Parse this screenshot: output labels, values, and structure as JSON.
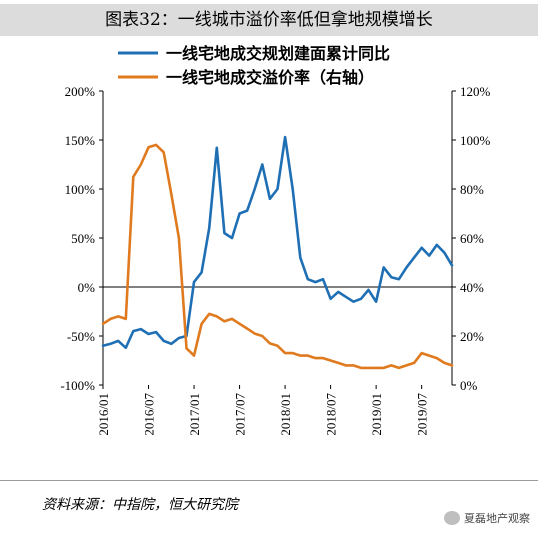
{
  "title": "图表32：一线城市溢价率低但拿地规模增长",
  "source": "资料来源：中指院，恒大研究院",
  "watermark": "夏磊地产观察",
  "chart_data": {
    "type": "line",
    "x_ticks": [
      "2016/01",
      "2016/07",
      "2017/01",
      "2017/07",
      "2018/01",
      "2018/07",
      "2019/01",
      "2019/07"
    ],
    "y_left": {
      "ticks": [
        "200%",
        "150%",
        "100%",
        "50%",
        "0%",
        "-50%",
        "-100%"
      ],
      "ylim": [
        -100,
        200
      ]
    },
    "y_right": {
      "ticks": [
        "120%",
        "100%",
        "80%",
        "60%",
        "40%",
        "20%",
        "0%"
      ],
      "ylim": [
        0,
        120
      ]
    },
    "series": [
      {
        "name": "一线宅地成交规划建面累计同比",
        "axis": "left",
        "color": "#1f6fb5",
        "values": [
          [
            0,
            -60
          ],
          [
            1,
            -58
          ],
          [
            2,
            -55
          ],
          [
            3,
            -62
          ],
          [
            4,
            -45
          ],
          [
            5,
            -43
          ],
          [
            6,
            -48
          ],
          [
            7,
            -46
          ],
          [
            8,
            -55
          ],
          [
            9,
            -58
          ],
          [
            10,
            -52
          ],
          [
            11,
            -50
          ],
          [
            12,
            5
          ],
          [
            13,
            15
          ],
          [
            14,
            60
          ],
          [
            15,
            142
          ],
          [
            16,
            55
          ],
          [
            17,
            50
          ],
          [
            18,
            75
          ],
          [
            19,
            78
          ],
          [
            20,
            100
          ],
          [
            21,
            125
          ],
          [
            22,
            90
          ],
          [
            23,
            100
          ],
          [
            24,
            153
          ],
          [
            25,
            100
          ],
          [
            26,
            30
          ],
          [
            27,
            8
          ],
          [
            28,
            5
          ],
          [
            29,
            8
          ],
          [
            30,
            -12
          ],
          [
            31,
            -5
          ],
          [
            32,
            -10
          ],
          [
            33,
            -15
          ],
          [
            34,
            -12
          ],
          [
            35,
            -3
          ],
          [
            36,
            -15
          ],
          [
            37,
            20
          ],
          [
            38,
            10
          ],
          [
            39,
            8
          ],
          [
            40,
            20
          ],
          [
            41,
            30
          ],
          [
            42,
            40
          ],
          [
            43,
            32
          ],
          [
            44,
            43
          ],
          [
            45,
            35
          ],
          [
            46,
            22
          ]
        ]
      },
      {
        "name": "一线宅地成交溢价率（右轴）",
        "axis": "right",
        "color": "#e07a1f",
        "values": [
          [
            0,
            25
          ],
          [
            1,
            27
          ],
          [
            2,
            28
          ],
          [
            3,
            27
          ],
          [
            4,
            85
          ],
          [
            5,
            90
          ],
          [
            6,
            97
          ],
          [
            7,
            98
          ],
          [
            8,
            95
          ],
          [
            9,
            78
          ],
          [
            10,
            60
          ],
          [
            11,
            15
          ],
          [
            12,
            12
          ],
          [
            13,
            25
          ],
          [
            14,
            29
          ],
          [
            15,
            28
          ],
          [
            16,
            26
          ],
          [
            17,
            27
          ],
          [
            18,
            25
          ],
          [
            19,
            23
          ],
          [
            20,
            21
          ],
          [
            21,
            20
          ],
          [
            22,
            17
          ],
          [
            23,
            16
          ],
          [
            24,
            13
          ],
          [
            25,
            13
          ],
          [
            26,
            12
          ],
          [
            27,
            12
          ],
          [
            28,
            11
          ],
          [
            29,
            11
          ],
          [
            30,
            10
          ],
          [
            31,
            9
          ],
          [
            32,
            8
          ],
          [
            33,
            8
          ],
          [
            34,
            7
          ],
          [
            35,
            7
          ],
          [
            36,
            7
          ],
          [
            37,
            7
          ],
          [
            38,
            8
          ],
          [
            39,
            7
          ],
          [
            40,
            8
          ],
          [
            41,
            9
          ],
          [
            42,
            13
          ],
          [
            43,
            12
          ],
          [
            44,
            11
          ],
          [
            45,
            9
          ],
          [
            46,
            8
          ]
        ]
      }
    ]
  }
}
